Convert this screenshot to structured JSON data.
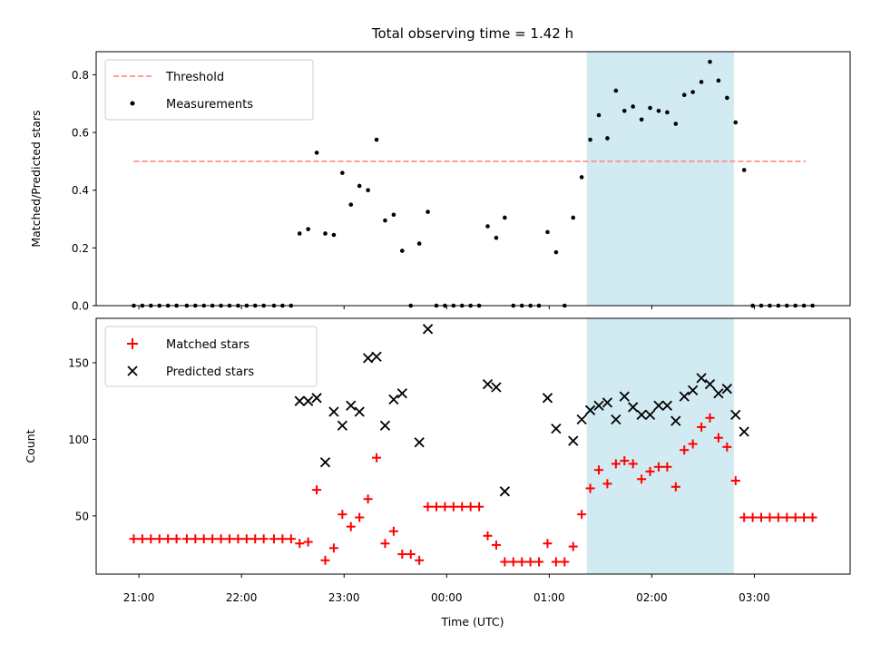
{
  "figure": {
    "title": "Total observing time = 1.42 h",
    "xlabel": "Time (UTC)",
    "xticks": [
      "21:00",
      "22:00",
      "23:00",
      "00:00",
      "01:00",
      "02:00",
      "03:00"
    ],
    "highlight_color": "#add8e6"
  },
  "chart_data": [
    {
      "type": "scatter",
      "ylabel": "Matched/Predicted stars",
      "ylim": [
        0,
        0.88
      ],
      "yticks": [
        "0.0",
        "0.2",
        "0.4",
        "0.6",
        "0.8"
      ],
      "x_axis": "time of day (UTC), shared with lower panel; labels shown only on lower panel",
      "highlight_interval": [
        "01:22",
        "02:48"
      ],
      "legend_placement": "upper-left",
      "series": [
        {
          "name": "Threshold",
          "style": "dashed-line",
          "color": "#ff7f7f",
          "x": [
            "20:57",
            "03:30"
          ],
          "y": [
            0.5,
            0.5
          ]
        },
        {
          "name": "Measurements",
          "style": "dots",
          "color": "#000000",
          "points": [
            [
              "20:57",
              0.0
            ],
            [
              "21:02",
              0.0
            ],
            [
              "21:07",
              0.0
            ],
            [
              "21:12",
              0.0
            ],
            [
              "21:17",
              0.0
            ],
            [
              "21:22",
              0.0
            ],
            [
              "21:28",
              0.0
            ],
            [
              "21:33",
              0.0
            ],
            [
              "21:38",
              0.0
            ],
            [
              "21:43",
              0.0
            ],
            [
              "21:48",
              0.0
            ],
            [
              "21:53",
              0.0
            ],
            [
              "21:58",
              0.0
            ],
            [
              "22:03",
              0.0
            ],
            [
              "22:08",
              0.0
            ],
            [
              "22:13",
              0.0
            ],
            [
              "22:19",
              0.0
            ],
            [
              "22:24",
              0.0
            ],
            [
              "22:29",
              0.0
            ],
            [
              "22:34",
              0.25
            ],
            [
              "22:39",
              0.265
            ],
            [
              "22:44",
              0.53
            ],
            [
              "22:49",
              0.25
            ],
            [
              "22:54",
              0.245
            ],
            [
              "22:59",
              0.46
            ],
            [
              "23:04",
              0.35
            ],
            [
              "23:09",
              0.415
            ],
            [
              "23:14",
              0.4
            ],
            [
              "23:19",
              0.575
            ],
            [
              "23:24",
              0.295
            ],
            [
              "23:29",
              0.315
            ],
            [
              "23:34",
              0.19
            ],
            [
              "23:39",
              0.0
            ],
            [
              "23:44",
              0.215
            ],
            [
              "23:49",
              0.325
            ],
            [
              "23:54",
              0.0
            ],
            [
              "23:59",
              0.0
            ],
            [
              "00:04",
              0.0
            ],
            [
              "00:09",
              0.0
            ],
            [
              "00:14",
              0.0
            ],
            [
              "00:19",
              0.0
            ],
            [
              "00:24",
              0.275
            ],
            [
              "00:29",
              0.235
            ],
            [
              "00:34",
              0.305
            ],
            [
              "00:39",
              0.0
            ],
            [
              "00:44",
              0.0
            ],
            [
              "00:49",
              0.0
            ],
            [
              "00:54",
              0.0
            ],
            [
              "00:59",
              0.255
            ],
            [
              "01:04",
              0.185
            ],
            [
              "01:09",
              0.0
            ],
            [
              "01:14",
              0.305
            ],
            [
              "01:19",
              0.445
            ],
            [
              "01:24",
              0.575
            ],
            [
              "01:29",
              0.66
            ],
            [
              "01:34",
              0.58
            ],
            [
              "01:39",
              0.745
            ],
            [
              "01:44",
              0.675
            ],
            [
              "01:49",
              0.69
            ],
            [
              "01:54",
              0.645
            ],
            [
              "01:59",
              0.685
            ],
            [
              "02:04",
              0.675
            ],
            [
              "02:09",
              0.67
            ],
            [
              "02:14",
              0.63
            ],
            [
              "02:19",
              0.73
            ],
            [
              "02:24",
              0.74
            ],
            [
              "02:29",
              0.775
            ],
            [
              "02:34",
              0.845
            ],
            [
              "02:39",
              0.78
            ],
            [
              "02:44",
              0.72
            ],
            [
              "02:49",
              0.635
            ],
            [
              "02:54",
              0.47
            ],
            [
              "02:59",
              0.0
            ],
            [
              "03:04",
              0.0
            ],
            [
              "03:09",
              0.0
            ],
            [
              "03:14",
              0.0
            ],
            [
              "03:19",
              0.0
            ],
            [
              "03:24",
              0.0
            ],
            [
              "03:29",
              0.0
            ],
            [
              "03:34",
              0.0
            ]
          ]
        }
      ]
    },
    {
      "type": "scatter",
      "ylabel": "Count",
      "ylim": [
        12,
        179
      ],
      "yticks": [
        "50",
        "100",
        "150"
      ],
      "xlim": [
        "20:35",
        "03:56"
      ],
      "highlight_interval": [
        "01:22",
        "02:48"
      ],
      "legend_placement": "upper-left",
      "series": [
        {
          "name": "Matched stars",
          "marker": "plus",
          "color": "#ff0000",
          "points": [
            [
              "20:57",
              35
            ],
            [
              "21:02",
              35
            ],
            [
              "21:07",
              35
            ],
            [
              "21:12",
              35
            ],
            [
              "21:17",
              35
            ],
            [
              "21:22",
              35
            ],
            [
              "21:28",
              35
            ],
            [
              "21:33",
              35
            ],
            [
              "21:38",
              35
            ],
            [
              "21:43",
              35
            ],
            [
              "21:48",
              35
            ],
            [
              "21:53",
              35
            ],
            [
              "21:58",
              35
            ],
            [
              "22:03",
              35
            ],
            [
              "22:08",
              35
            ],
            [
              "22:13",
              35
            ],
            [
              "22:19",
              35
            ],
            [
              "22:24",
              35
            ],
            [
              "22:29",
              35
            ],
            [
              "22:34",
              32
            ],
            [
              "22:39",
              33
            ],
            [
              "22:44",
              67
            ],
            [
              "22:49",
              21
            ],
            [
              "22:54",
              29
            ],
            [
              "22:59",
              51
            ],
            [
              "23:04",
              43
            ],
            [
              "23:09",
              49
            ],
            [
              "23:14",
              61
            ],
            [
              "23:19",
              88
            ],
            [
              "23:24",
              32
            ],
            [
              "23:29",
              40
            ],
            [
              "23:34",
              25
            ],
            [
              "23:39",
              25
            ],
            [
              "23:44",
              21
            ],
            [
              "23:49",
              56
            ],
            [
              "23:54",
              56
            ],
            [
              "23:59",
              56
            ],
            [
              "00:04",
              56
            ],
            [
              "00:09",
              56
            ],
            [
              "00:14",
              56
            ],
            [
              "00:19",
              56
            ],
            [
              "00:24",
              37
            ],
            [
              "00:29",
              31
            ],
            [
              "00:34",
              20
            ],
            [
              "00:39",
              20
            ],
            [
              "00:44",
              20
            ],
            [
              "00:49",
              20
            ],
            [
              "00:54",
              20
            ],
            [
              "00:59",
              32
            ],
            [
              "01:04",
              20
            ],
            [
              "01:09",
              20
            ],
            [
              "01:14",
              30
            ],
            [
              "01:19",
              51
            ],
            [
              "01:24",
              68
            ],
            [
              "01:29",
              80
            ],
            [
              "01:34",
              71
            ],
            [
              "01:39",
              84
            ],
            [
              "01:44",
              86
            ],
            [
              "01:49",
              84
            ],
            [
              "01:54",
              74
            ],
            [
              "01:59",
              79
            ],
            [
              "02:04",
              82
            ],
            [
              "02:09",
              82
            ],
            [
              "02:14",
              69
            ],
            [
              "02:19",
              93
            ],
            [
              "02:24",
              97
            ],
            [
              "02:29",
              108
            ],
            [
              "02:34",
              114
            ],
            [
              "02:39",
              101
            ],
            [
              "02:44",
              95
            ],
            [
              "02:49",
              73
            ],
            [
              "02:54",
              49
            ],
            [
              "02:59",
              49
            ],
            [
              "03:04",
              49
            ],
            [
              "03:09",
              49
            ],
            [
              "03:14",
              49
            ],
            [
              "03:19",
              49
            ],
            [
              "03:24",
              49
            ],
            [
              "03:29",
              49
            ],
            [
              "03:34",
              49
            ]
          ]
        },
        {
          "name": "Predicted stars",
          "marker": "x",
          "color": "#000000",
          "points": [
            [
              "22:34",
              125
            ],
            [
              "22:39",
              125
            ],
            [
              "22:44",
              127
            ],
            [
              "22:49",
              85
            ],
            [
              "22:54",
              118
            ],
            [
              "22:59",
              109
            ],
            [
              "23:04",
              122
            ],
            [
              "23:09",
              118
            ],
            [
              "23:14",
              153
            ],
            [
              "23:19",
              154
            ],
            [
              "23:24",
              109
            ],
            [
              "23:29",
              126
            ],
            [
              "23:34",
              130
            ],
            [
              "23:44",
              98
            ],
            [
              "23:49",
              172
            ],
            [
              "00:24",
              136
            ],
            [
              "00:29",
              134
            ],
            [
              "00:34",
              66
            ],
            [
              "00:59",
              127
            ],
            [
              "01:04",
              107
            ],
            [
              "01:14",
              99
            ],
            [
              "01:19",
              113
            ],
            [
              "01:24",
              119
            ],
            [
              "01:29",
              122
            ],
            [
              "01:34",
              124
            ],
            [
              "01:39",
              113
            ],
            [
              "01:44",
              128
            ],
            [
              "01:49",
              121
            ],
            [
              "01:54",
              116
            ],
            [
              "01:59",
              116
            ],
            [
              "02:04",
              122
            ],
            [
              "02:09",
              122
            ],
            [
              "02:14",
              112
            ],
            [
              "02:19",
              128
            ],
            [
              "02:24",
              132
            ],
            [
              "02:29",
              140
            ],
            [
              "02:34",
              136
            ],
            [
              "02:39",
              130
            ],
            [
              "02:44",
              133
            ],
            [
              "02:49",
              116
            ],
            [
              "02:54",
              105
            ]
          ]
        }
      ]
    }
  ]
}
